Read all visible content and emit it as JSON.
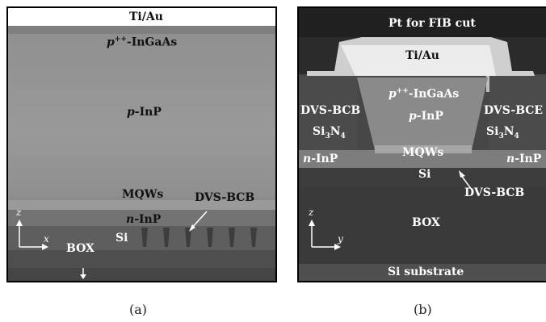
{
  "panel_a": {
    "caption": "(a)",
    "labels": {
      "tiau": "Ti/Au",
      "ingaas_prefix": "p",
      "ingaas_sup": "++",
      "ingaas_rest": "-InGaAs",
      "pinp_prefix": "p",
      "pinp_rest": "-InP",
      "mqws": "MQWs",
      "ninp_prefix": "n",
      "ninp_rest": "-InP",
      "dvsbcb": "DVS-BCB",
      "si": "Si",
      "box": "BOX"
    },
    "axes": {
      "vertical": "z",
      "horizontal": "x"
    }
  },
  "panel_b": {
    "caption": "(b)",
    "labels": {
      "pt": "Pt for FIB cut",
      "tiau": "Ti/Au",
      "ingaas_prefix": "p",
      "ingaas_sup": "++",
      "ingaas_rest": "-InGaAs",
      "pinp_prefix": "p",
      "pinp_rest": "-InP",
      "dvsbcb_left": "DVS-BCB",
      "dvsbcb_right": "DVS-BCE",
      "sin_left": "Si",
      "sin_sub": "3",
      "sin_n": "N",
      "sin_sub2": "4",
      "mqws": "MQWs",
      "ninp_prefix": "n",
      "ninp_rest": "-InP",
      "si": "Si",
      "dvsbcb_bottom": "DVS-BCB",
      "box": "BOX",
      "substrate": "Si substrate"
    },
    "axes": {
      "vertical": "z",
      "horizontal": "y"
    }
  }
}
